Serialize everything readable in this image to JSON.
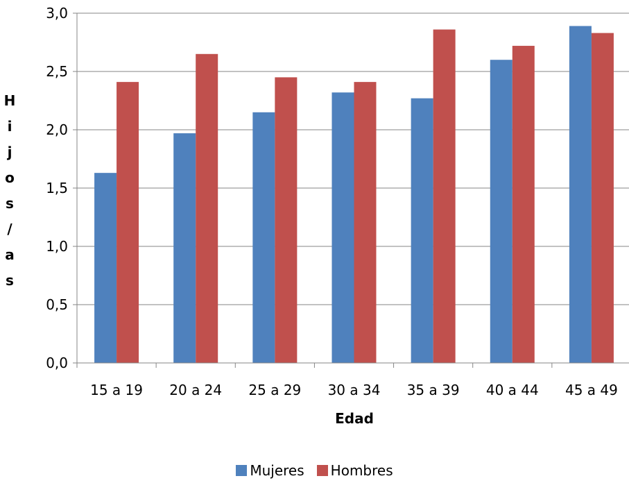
{
  "chart_data": {
    "type": "bar",
    "xlabel": "Edad",
    "ylabel": "Hijos/as",
    "categories": [
      "15 a 19",
      "20 a 24",
      "25 a 29",
      "30 a 34",
      "35 a 39",
      "40 a 44",
      "45 a 49"
    ],
    "series": [
      {
        "name": "Mujeres",
        "color": "#4F81BD",
        "values": [
          1.63,
          1.97,
          2.15,
          2.32,
          2.27,
          2.6,
          2.89
        ]
      },
      {
        "name": "Hombres",
        "color": "#C0504D",
        "values": [
          2.41,
          2.65,
          2.45,
          2.41,
          2.86,
          2.72,
          2.83
        ]
      }
    ],
    "ylim": [
      0,
      3
    ],
    "yticks": [
      "0,0",
      "0,5",
      "1,0",
      "1,5",
      "2,0",
      "2,5",
      "3,0"
    ],
    "grid": true,
    "legend_position": "bottom"
  }
}
